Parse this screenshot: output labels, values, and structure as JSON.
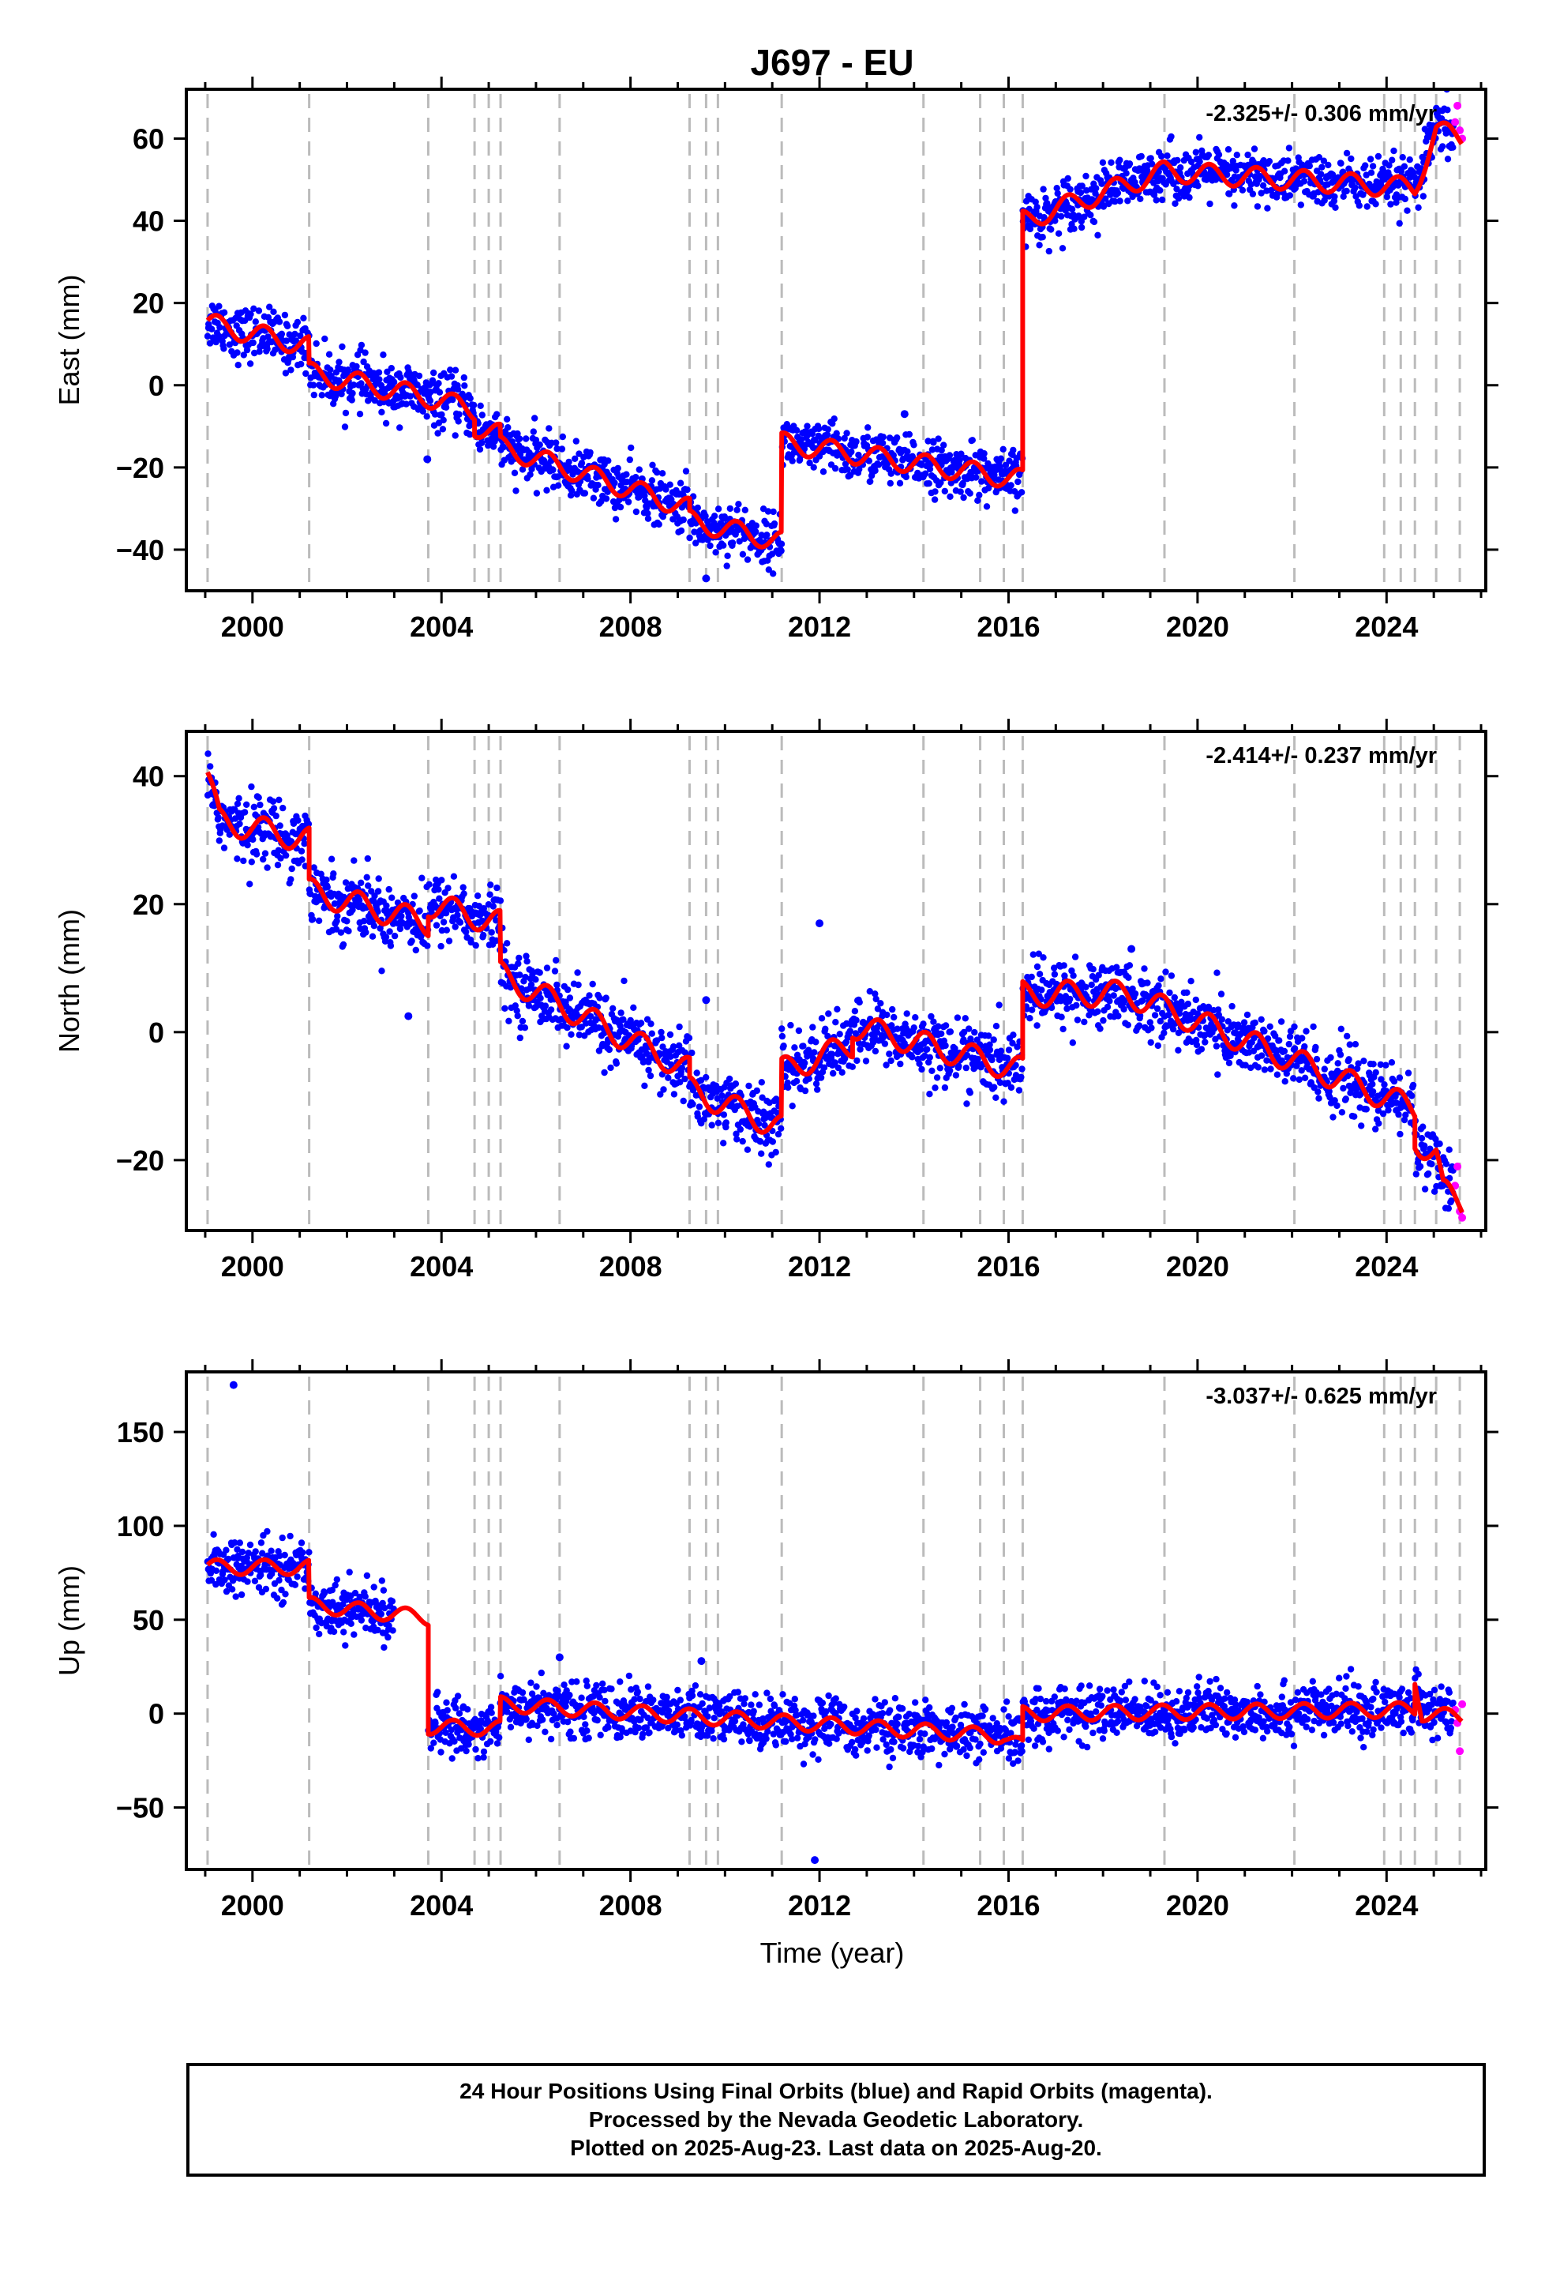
{
  "title": "J697 - EU",
  "xlabel": "Time (year)",
  "footer": {
    "line1": "24 Hour Positions Using Final Orbits (blue) and Rapid Orbits (magenta).",
    "line2": "Processed by the Nevada Geodetic Laboratory.",
    "line3": "Plotted on 2025-Aug-23. Last data on 2025-Aug-20."
  },
  "colors": {
    "final": "#0000ff",
    "rapid": "#ff00ff",
    "model": "#ff0000",
    "steps": "#bbbbbb"
  },
  "chart_data": {
    "type": "scatter",
    "x_range": [
      1998.6,
      2026.1
    ],
    "x_ticks": [
      2000,
      2004,
      2008,
      2012,
      2016,
      2020,
      2024
    ],
    "step_lines": [
      1999.05,
      2001.2,
      2003.72,
      2004.7,
      2005.0,
      2005.25,
      2006.5,
      2009.25,
      2009.6,
      2009.85,
      2011.2,
      2014.2,
      2015.4,
      2015.9,
      2016.3,
      2019.3,
      2022.05,
      2023.95,
      2024.3,
      2024.6,
      2025.05,
      2025.55
    ],
    "panels": [
      {
        "ylabel": "East (mm)",
        "ylim": [
          -50,
          72
        ],
        "yticks": [
          -40,
          -20,
          0,
          20,
          40,
          60
        ],
        "rate": "-2.325+/- 0.306 mm/yr",
        "spread": 3.2,
        "seasonal": 2.5,
        "model": [
          [
            1999.05,
            15
          ],
          [
            2001.2,
            9.5
          ],
          [
            2001.2,
            3
          ],
          [
            2003.72,
            -3
          ],
          [
            2004.7,
            -6
          ],
          [
            2004.7,
            -10
          ],
          [
            2005.25,
            -12
          ],
          [
            2005.25,
            -15
          ],
          [
            2009.25,
            -30
          ],
          [
            2009.25,
            -33
          ],
          [
            2011.2,
            -38
          ],
          [
            2011.2,
            -14
          ],
          [
            2016.3,
            -23
          ],
          [
            2016.3,
            40
          ],
          [
            2019.3,
            52
          ],
          [
            2024.6,
            48
          ],
          [
            2025.05,
            62
          ],
          [
            2025.6,
            60
          ]
        ],
        "rapid_points": [
          [
            2025.45,
            64
          ],
          [
            2025.5,
            68
          ],
          [
            2025.55,
            62
          ],
          [
            2025.6,
            60
          ]
        ],
        "outliers": [
          [
            2009.6,
            -47
          ],
          [
            2003.7,
            -18
          ],
          [
            2013.8,
            -7
          ]
        ]
      },
      {
        "ylabel": "North (mm)",
        "ylim": [
          -31,
          47
        ],
        "yticks": [
          -20,
          0,
          20,
          40
        ],
        "rate": "-2.414+/- 0.237 mm/yr",
        "spread": 2.6,
        "seasonal": 2.0,
        "model": [
          [
            1999.05,
            40
          ],
          [
            1999.3,
            33
          ],
          [
            2001.2,
            30
          ],
          [
            2001.2,
            22
          ],
          [
            2003.72,
            17
          ],
          [
            2003.72,
            20
          ],
          [
            2005.25,
            17
          ],
          [
            2005.25,
            9
          ],
          [
            2009.25,
            -6
          ],
          [
            2009.25,
            -9
          ],
          [
            2011.2,
            -15
          ],
          [
            2011.2,
            -6
          ],
          [
            2012.7,
            -2
          ],
          [
            2012.7,
            1
          ],
          [
            2016.3,
            -6
          ],
          [
            2016.3,
            6
          ],
          [
            2018.5,
            6
          ],
          [
            2024.6,
            -12
          ],
          [
            2024.6,
            -17
          ],
          [
            2025.05,
            -19
          ],
          [
            2025.2,
            -25
          ],
          [
            2025.6,
            -27
          ]
        ],
        "rapid_points": [
          [
            2025.45,
            -24
          ],
          [
            2025.5,
            -21
          ],
          [
            2025.55,
            -28
          ],
          [
            2025.6,
            -29
          ]
        ],
        "outliers": [
          [
            2012.0,
            17
          ],
          [
            2009.6,
            5
          ],
          [
            2003.3,
            2.5
          ],
          [
            2018.6,
            13
          ]
        ]
      },
      {
        "ylabel": "Up (mm)",
        "ylim": [
          -83,
          182
        ],
        "yticks": [
          -50,
          0,
          50,
          100,
          150
        ],
        "rate": "-3.037+/- 0.625 mm/yr",
        "spread": 7.0,
        "seasonal": 4.0,
        "model": [
          [
            1999.05,
            78
          ],
          [
            2001.2,
            78
          ],
          [
            2001.2,
            58
          ],
          [
            2003.72,
            51
          ],
          [
            2003.72,
            -7
          ],
          [
            2005.25,
            -8
          ],
          [
            2005.25,
            5
          ],
          [
            2015.9,
            -12
          ],
          [
            2016.3,
            -18
          ],
          [
            2016.3,
            0
          ],
          [
            2024.6,
            2
          ],
          [
            2024.6,
            18
          ],
          [
            2024.75,
            0
          ],
          [
            2025.6,
            -2
          ]
        ],
        "rapid_points": [
          [
            2025.45,
            2
          ],
          [
            2025.5,
            -5
          ],
          [
            2025.55,
            -20
          ],
          [
            2025.6,
            5
          ]
        ],
        "outliers": [
          [
            1999.6,
            175
          ],
          [
            2011.9,
            -78
          ],
          [
            2009.5,
            28
          ],
          [
            2006.5,
            30
          ]
        ]
      }
    ]
  }
}
